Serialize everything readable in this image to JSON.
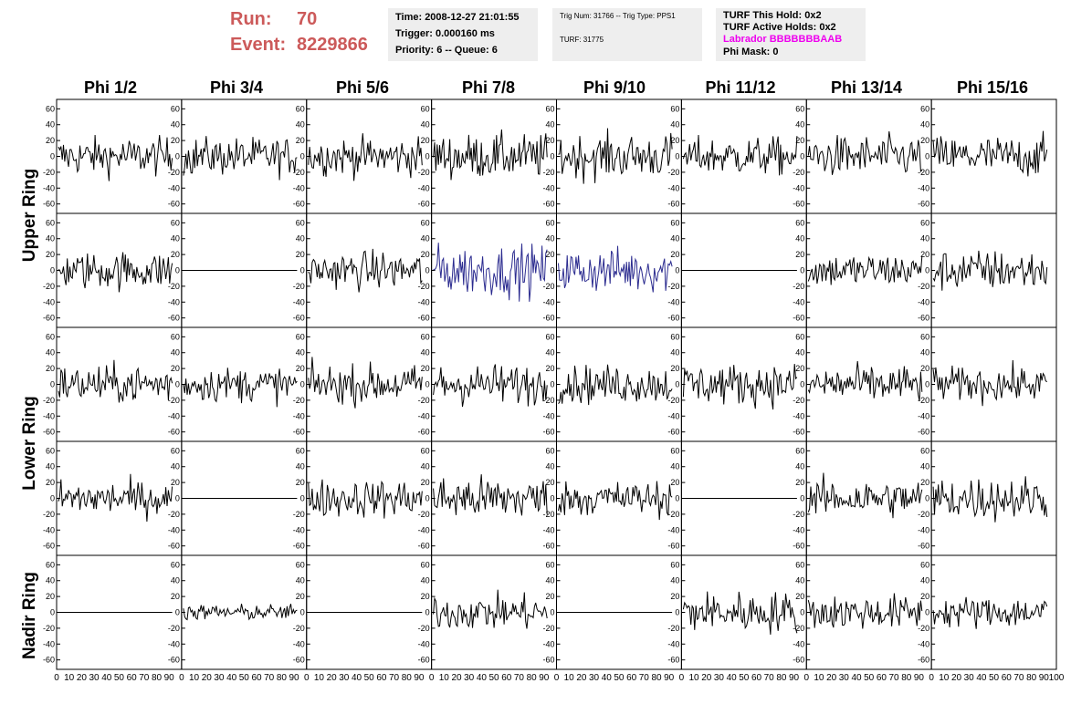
{
  "header": {
    "run_label": "Run:",
    "run_value": "70",
    "event_label": "Event:",
    "event_value": "8229866",
    "time": "Time: 2008-12-27 21:01:55",
    "trigger": "Trigger: 0.000160 ms",
    "priority": "Priority: 6 -- Queue: 6",
    "trig_num": "Trig Num: 31766 -- Trig Type: PPS1",
    "turf": "TURF: 31775",
    "turf_hold": "TURF This Hold: 0x2",
    "turf_active": "TURF Active Holds: 0x2",
    "labrador": "Labrador BBBBBBBAAB",
    "phi_mask": "Phi Mask: 0"
  },
  "colors": {
    "header_red": "#cc5a5a",
    "labrador": "#ee00ee",
    "trace": "#000000",
    "highlight_trace": "#2b2b8f",
    "info_bg": "#eeeeee"
  },
  "chart_data": {
    "type": "line",
    "columns": [
      "Phi 1/2",
      "Phi 3/4",
      "Phi 5/6",
      "Phi 7/8",
      "Phi 9/10",
      "Phi 11/12",
      "Phi 13/14",
      "Phi 15/16"
    ],
    "rows": [
      "Upper Ring",
      "Upper Ring",
      "Lower Ring",
      "Lower Ring",
      "Nadir Ring"
    ],
    "row_labels": [
      "Upper Ring",
      "Lower Ring",
      "Nadir Ring"
    ],
    "xlim": [
      0,
      100
    ],
    "ylim": [
      -65,
      65
    ],
    "x_ticks": [
      "0",
      "10",
      "20",
      "30",
      "40",
      "50",
      "60",
      "70",
      "80",
      "90",
      "100"
    ],
    "y_ticks": [
      "-60",
      "-40",
      "-20",
      "0",
      "20",
      "40",
      "60"
    ],
    "samples": 90,
    "amplitude_rms": [
      [
        12,
        12,
        12,
        14,
        14,
        12,
        13,
        13
      ],
      [
        12,
        0,
        12,
        16,
        14,
        0,
        11,
        13
      ],
      [
        12,
        11,
        12,
        13,
        12,
        13,
        12,
        11
      ],
      [
        11,
        0,
        12,
        14,
        11,
        0,
        12,
        14
      ],
      [
        0,
        5,
        0,
        11,
        0,
        13,
        11,
        10
      ]
    ],
    "highlighted": [
      [
        1,
        3
      ],
      [
        1,
        4
      ]
    ],
    "grid": false
  }
}
